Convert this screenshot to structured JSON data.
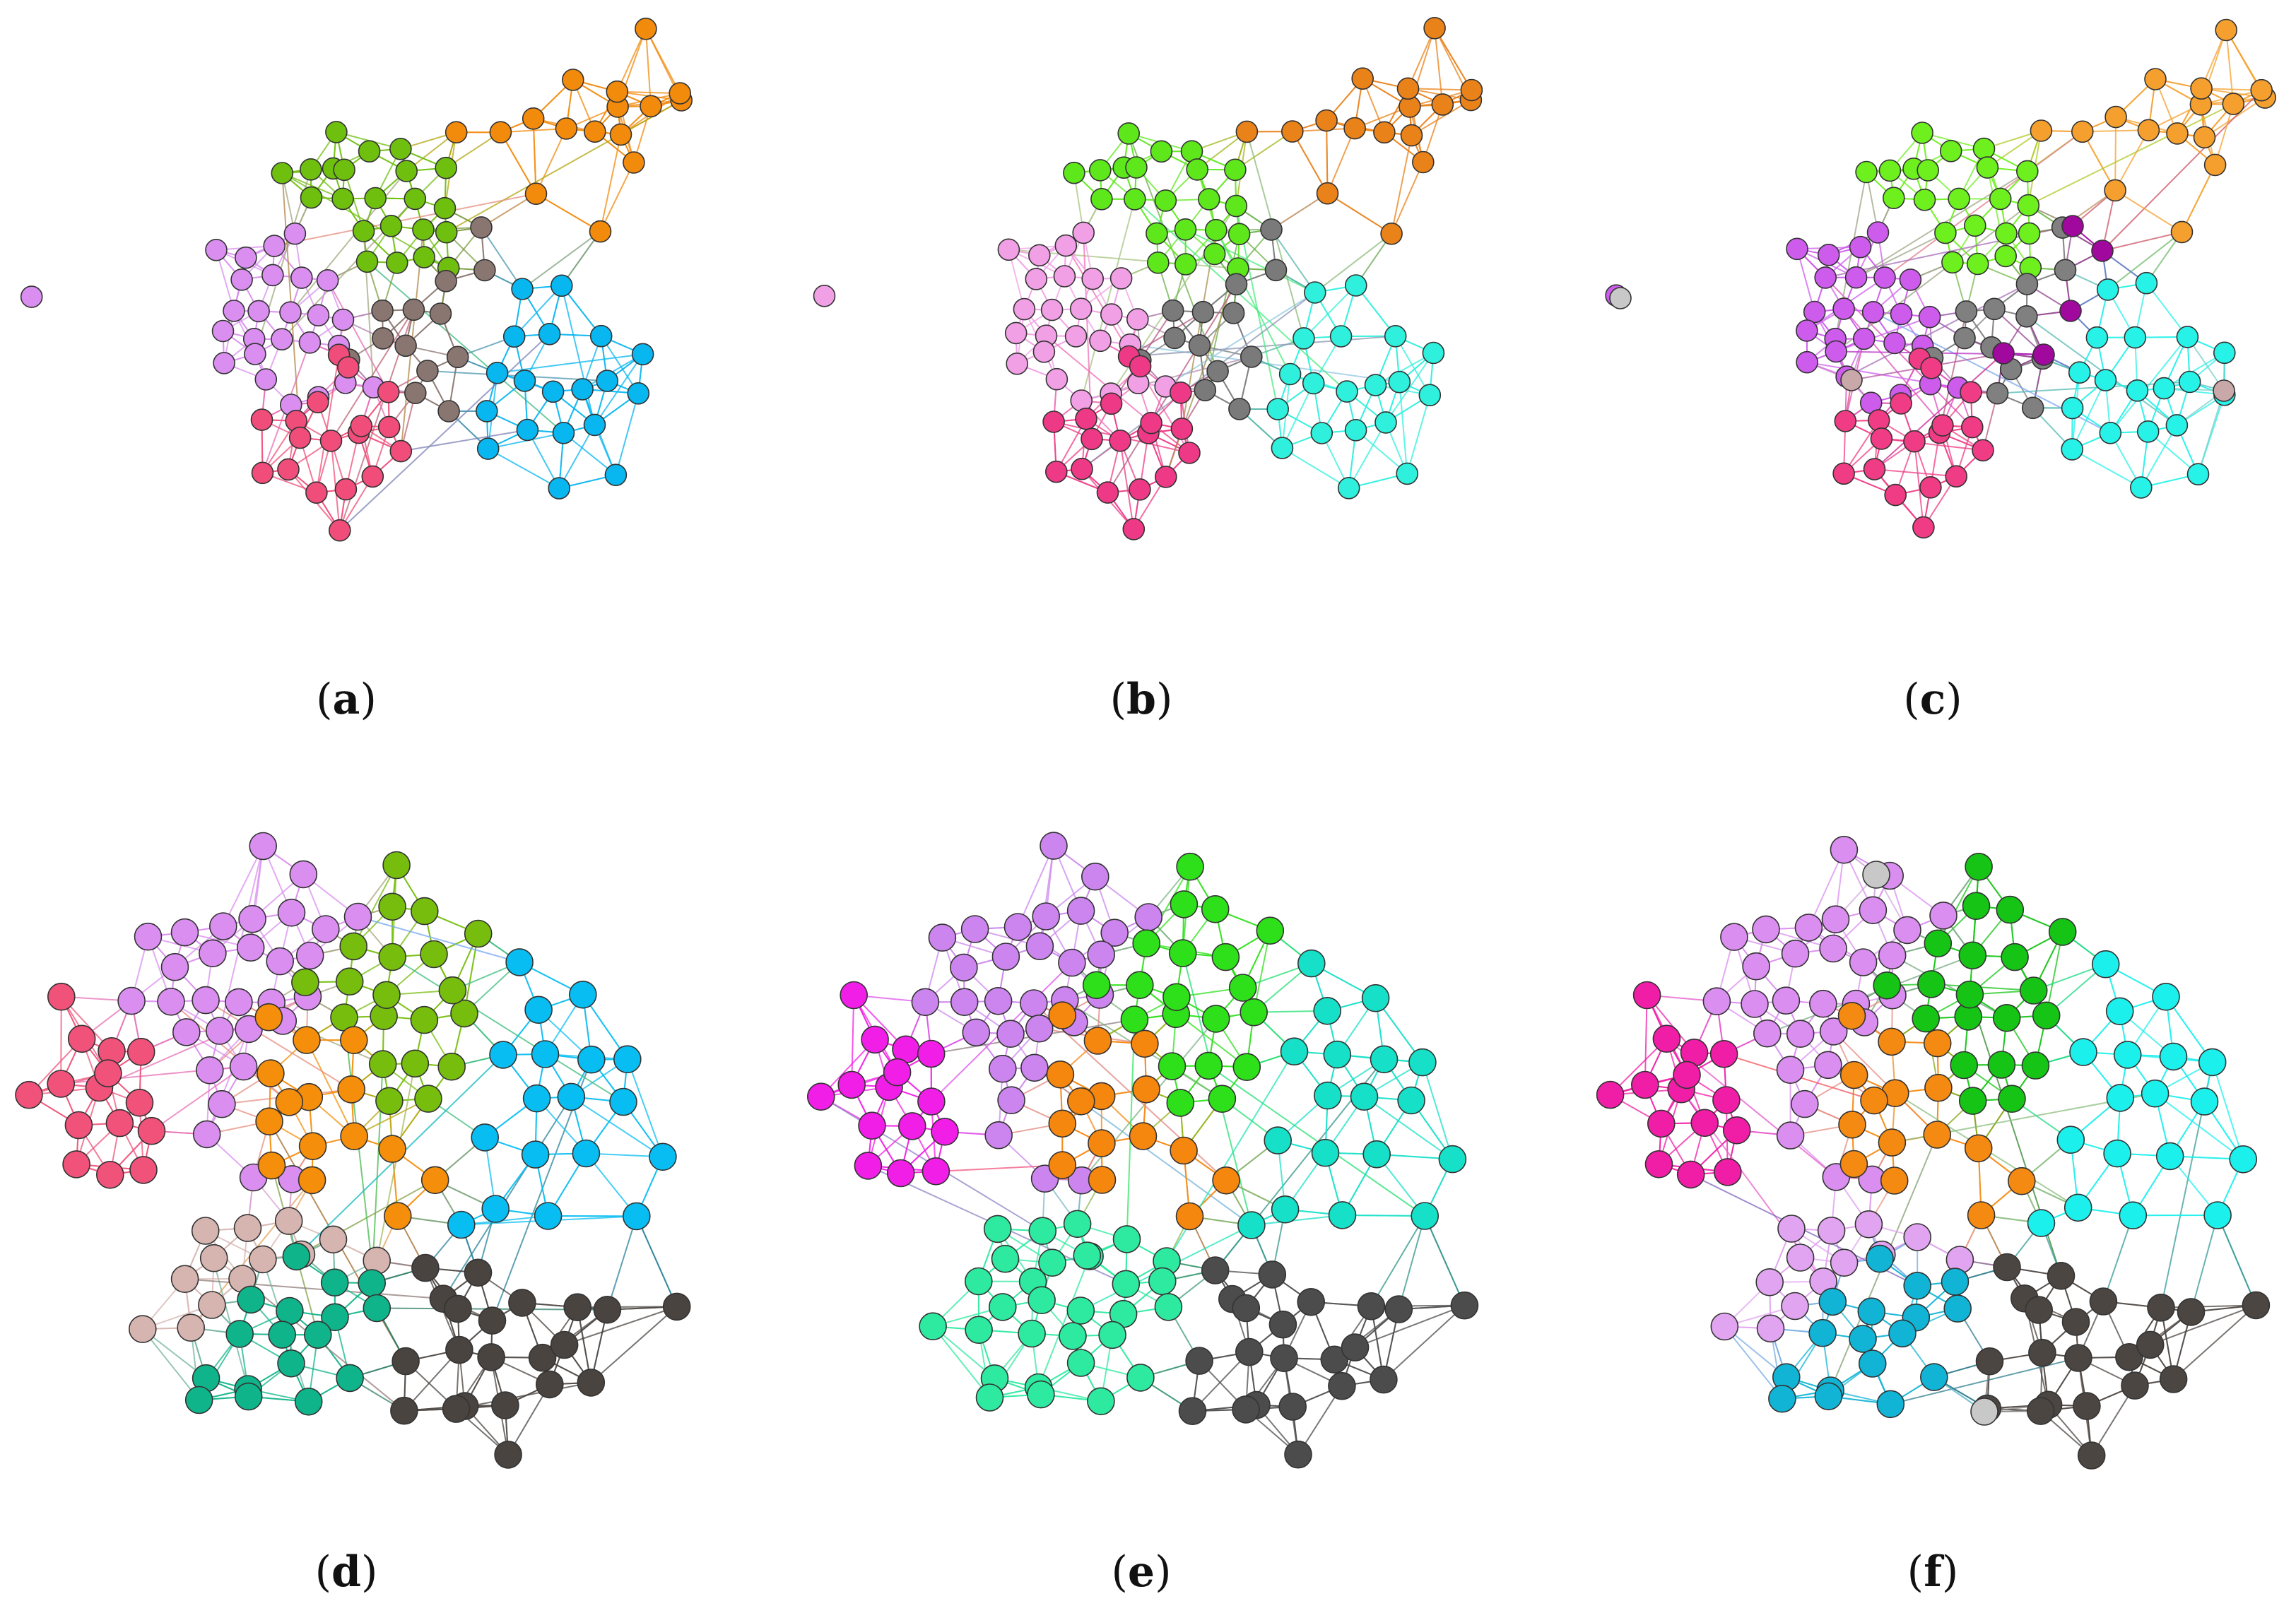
{
  "figure": {
    "panels": [
      {
        "id": "a",
        "label": "a",
        "colors": {
          "lilac": "#d98ef0",
          "green": "#6fbf0f",
          "orange": "#f28a0c",
          "brown": "#8a7670",
          "blue": "#08b6f0",
          "pink": "#f04d7a"
        }
      },
      {
        "id": "b",
        "label": "b",
        "colors": {
          "lilac": "#f2a0e6",
          "green": "#5ee81c",
          "orange": "#ea821a",
          "brown": "#7a7a7a",
          "blue": "#2ef0dc",
          "pink": "#ee3a86"
        }
      },
      {
        "id": "c",
        "label": "c",
        "colors": {
          "lilac": "#cd5ced",
          "green": "#6ef01e",
          "orange": "#f5a02e",
          "brown": "#808080",
          "blue": "#27f2e8",
          "pink": "#f03c84",
          "purple": "#a0089e",
          "outlier": "#c8a8a8",
          "grey": "#c8c8c8"
        }
      },
      {
        "id": "d",
        "label": "d",
        "colors": {
          "lilac": "#d98ef0",
          "green": "#76bd0e",
          "orange": "#f58e0a",
          "blue": "#08bdf2",
          "pink": "#f0527a",
          "tan": "#d6b4b0",
          "teal": "#10b48a",
          "dark": "#4a4440"
        }
      },
      {
        "id": "e",
        "label": "e",
        "colors": {
          "lilac": "#cc85ee",
          "green": "#2ee01a",
          "orange": "#f5860e",
          "blue": "#16e0c8",
          "pink": "#f01ee6",
          "tan": "#2eeaa0",
          "teal": "#2eeaa0",
          "dark": "#4c4c4c"
        }
      },
      {
        "id": "f",
        "label": "f",
        "colors": {
          "lilac": "#d98ef0",
          "green": "#16c416",
          "orange": "#f58a12",
          "blue": "#1cf0ec",
          "pink": "#f01ea6",
          "tan": "#e0a4f0",
          "teal": "#12b4d6",
          "dark": "#4c4642",
          "grey": "#c8c8c8"
        }
      }
    ]
  }
}
